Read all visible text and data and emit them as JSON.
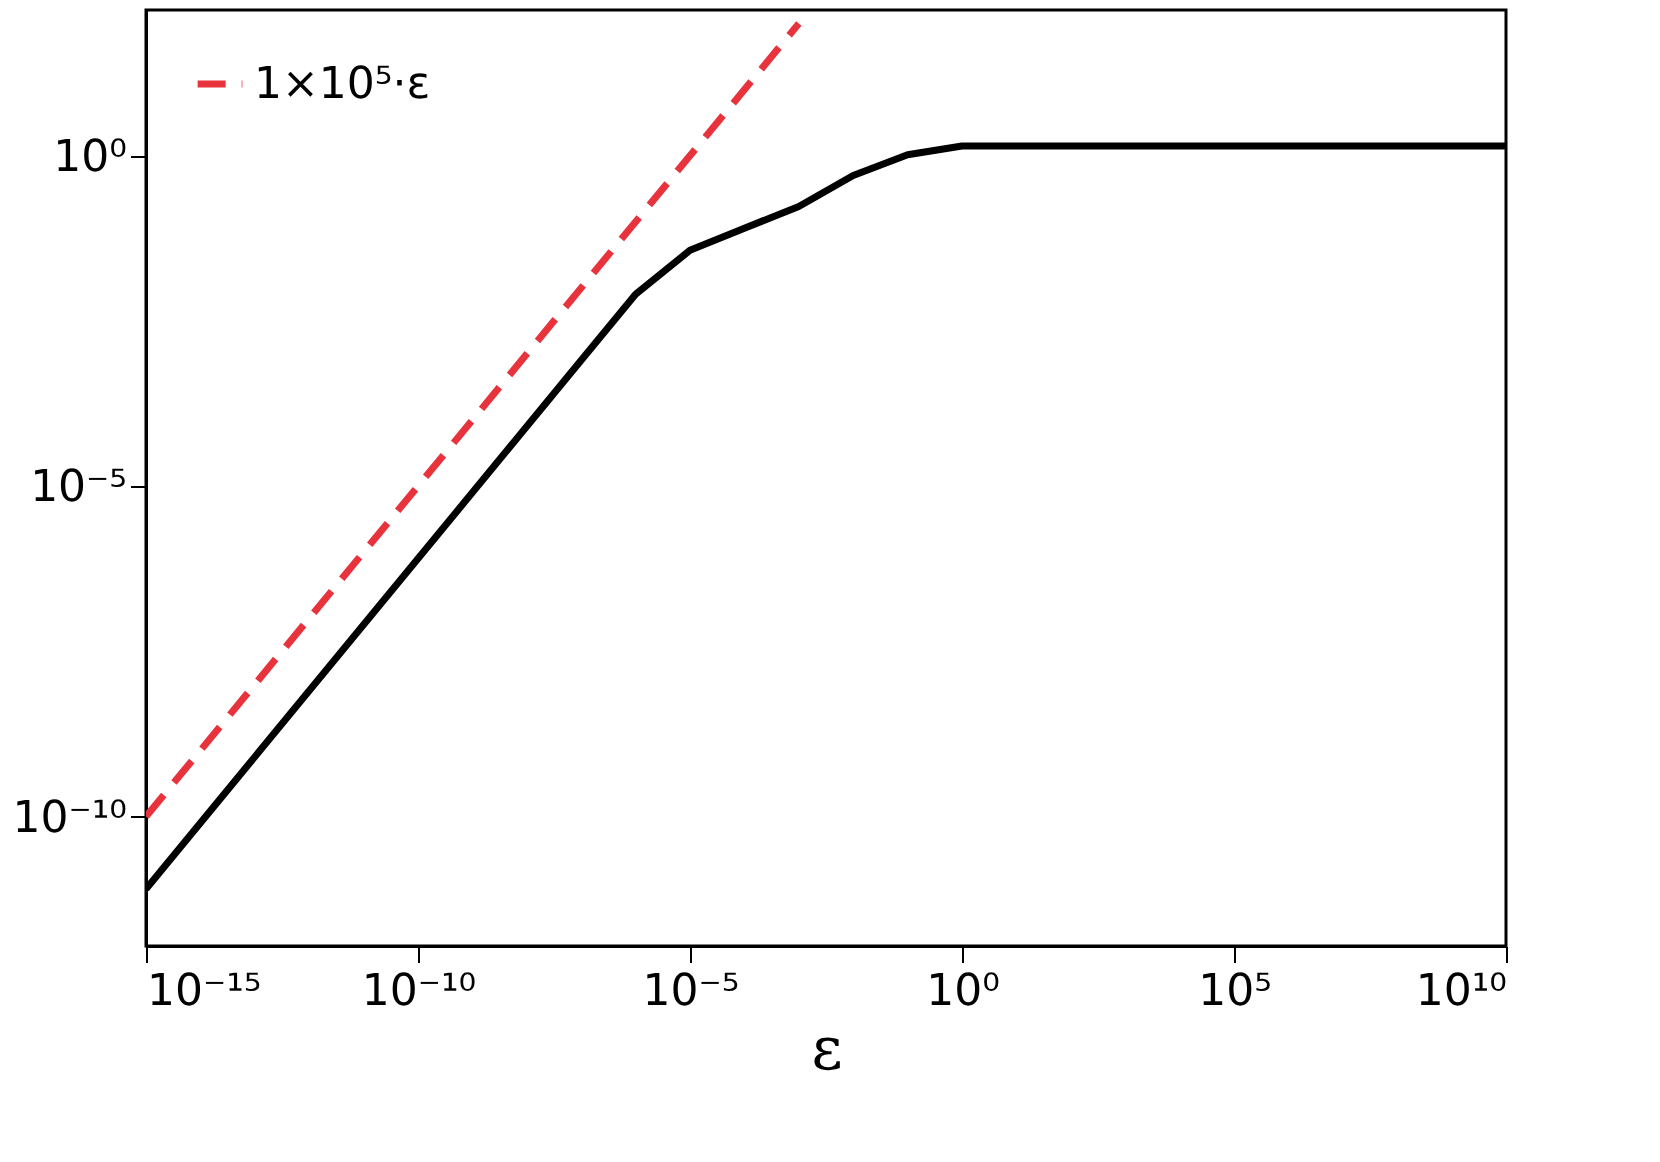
{
  "chart_data": {
    "type": "line",
    "xlabel": "ε",
    "log": "xy",
    "grid": false,
    "legend": "top left",
    "xlim": [
      1e-15,
      10000000000.0
    ],
    "ylim": [
      1.1e-12,
      160
    ],
    "xticks": [
      {
        "value": 1e-15,
        "label": "10⁻¹⁵"
      },
      {
        "value": 1e-10,
        "label": "10⁻¹⁰"
      },
      {
        "value": 1e-05,
        "label": "10⁻⁵"
      },
      {
        "value": 1,
        "label": "10⁰"
      },
      {
        "value": 100000.0,
        "label": "10⁵"
      },
      {
        "value": 10000000000.0,
        "label": "10¹⁰"
      }
    ],
    "yticks": [
      {
        "value": 1e-10,
        "label": "10⁻¹⁰"
      },
      {
        "value": 1e-05,
        "label": "10⁻⁵"
      },
      {
        "value": 1,
        "label": "10⁰"
      }
    ],
    "series": [
      {
        "color": "#000000",
        "line_style": "solid",
        "x": [
          1e-15,
          1e-07,
          1e-06,
          1e-05,
          0.0001,
          0.001,
          0.01,
          0.1,
          1,
          10000000000.0
        ],
        "values": [
          8e-12,
          0.0008,
          0.008,
          0.037,
          0.08,
          0.17,
          0.5,
          1.03,
          1.4,
          1.4
        ]
      },
      {
        "name": "1×10⁵·ε",
        "color": "#e8323c",
        "line_style": "dashed",
        "x": [
          1e-15,
          0.001
        ],
        "values": [
          1e-10,
          100
        ]
      }
    ]
  }
}
